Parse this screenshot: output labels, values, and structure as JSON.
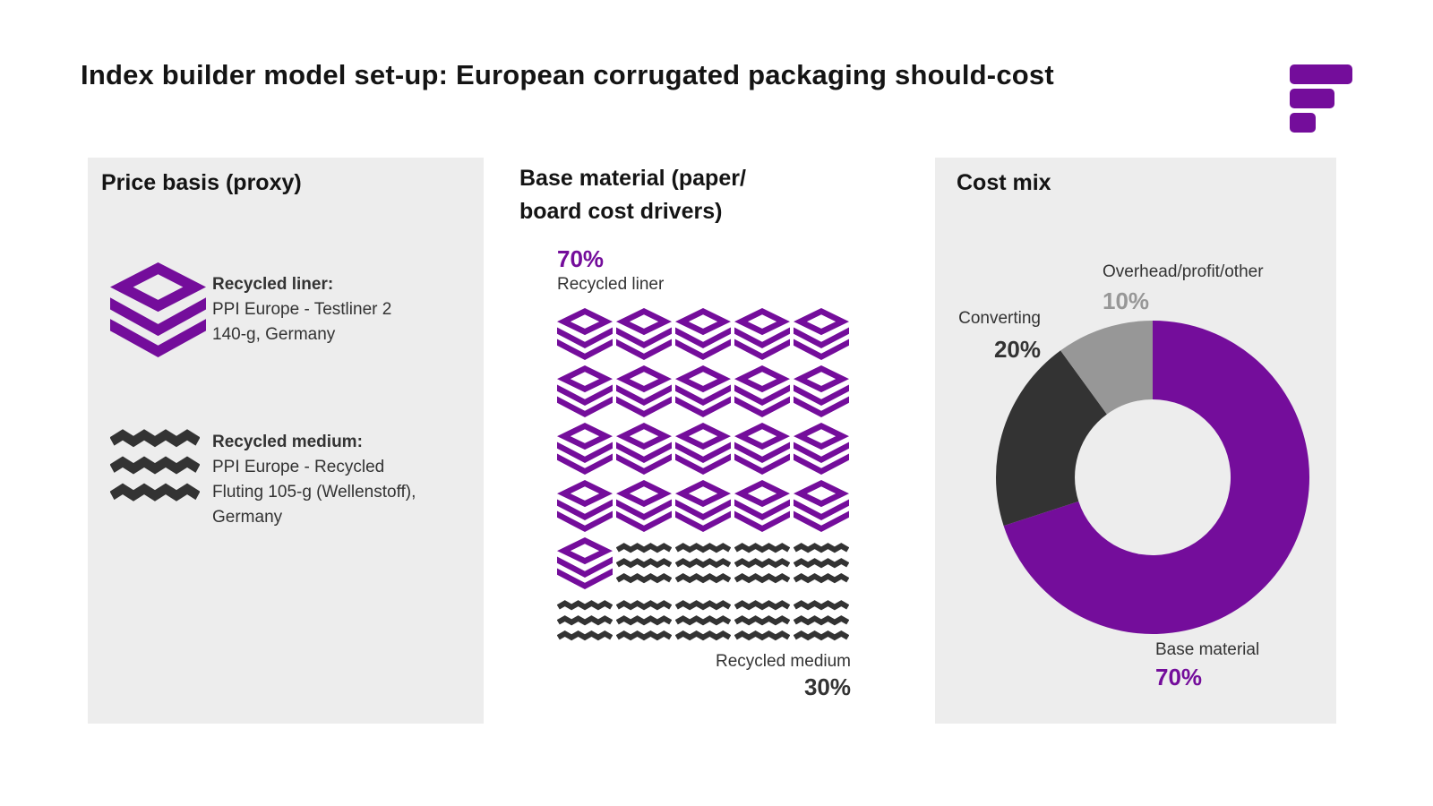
{
  "title": "Index builder model set-up: European corrugated packaging should-cost",
  "colors": {
    "purple": "#740D9B",
    "charcoal": "#333333",
    "gray": "#979797",
    "panel_bg": "#EDEDED"
  },
  "logo": {
    "icon": "brand-logo-bars-icon"
  },
  "panels": {
    "price_basis": {
      "title": "Price basis (proxy)",
      "items": [
        {
          "icon": "recycled-liner-layers-icon",
          "heading": "Recycled liner:",
          "line1": "PPI Europe - Testliner 2",
          "line2": "140-g, Germany"
        },
        {
          "icon": "recycled-medium-zigzag-icon",
          "heading": "Recycled medium:",
          "line1": "PPI Europe - Recycled",
          "line2": "Fluting 105-g (Wellenstoff),",
          "line3": "Germany"
        }
      ]
    },
    "base_material": {
      "title_line1": "Base material (paper/",
      "title_line2": "board cost drivers)",
      "top_pct": "70%",
      "top_name": "Recycled liner",
      "bottom_name": "Recycled medium",
      "bottom_pct": "30%",
      "waffle": {
        "columns": 5,
        "rows": 6,
        "liner_cells": 21,
        "medium_cells": 9
      }
    },
    "cost_mix": {
      "title": "Cost mix",
      "labels": {
        "overhead_name": "Overhead/profit/other",
        "overhead_pct": "10%",
        "converting_name": "Converting",
        "converting_pct": "20%",
        "base_name": "Base material",
        "base_pct": "70%"
      }
    }
  },
  "chart_data": [
    {
      "type": "pictograph",
      "title": "Base material (paper/board cost drivers)",
      "categories": [
        "Recycled liner",
        "Recycled medium"
      ],
      "values": [
        70,
        30
      ],
      "unit": "%",
      "grid": {
        "rows": 6,
        "columns": 5,
        "total_icons": 30
      },
      "icon_counts": [
        21,
        9
      ],
      "icon_colors": [
        "#740D9B",
        "#333333"
      ]
    },
    {
      "type": "pie",
      "subtype": "donut",
      "title": "Cost mix",
      "labels": [
        "Base material",
        "Converting",
        "Overhead/profit/other"
      ],
      "values": [
        70,
        20,
        10
      ],
      "unit": "%",
      "colors": [
        "#740D9B",
        "#333333",
        "#979797"
      ],
      "start_angle_deg": 0,
      "direction": "clockwise",
      "legend_position": "around-chart"
    }
  ]
}
